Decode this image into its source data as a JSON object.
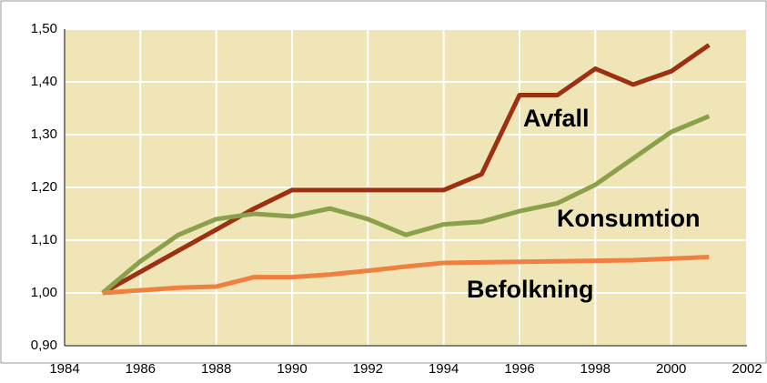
{
  "chart_data": {
    "type": "line",
    "x": [
      1985,
      1986,
      1987,
      1988,
      1989,
      1990,
      1991,
      1992,
      1993,
      1994,
      1995,
      1996,
      1997,
      1998,
      1999,
      2000,
      2001
    ],
    "series": [
      {
        "name": "Avfall",
        "color": "#9c3010",
        "values": [
          1.0,
          1.04,
          1.08,
          1.12,
          1.16,
          1.195,
          1.195,
          1.195,
          1.195,
          1.195,
          1.225,
          1.375,
          1.375,
          1.425,
          1.395,
          1.42,
          1.47
        ]
      },
      {
        "name": "Konsumtion",
        "color": "#8aa04a",
        "values": [
          1.0,
          1.06,
          1.11,
          1.14,
          1.15,
          1.145,
          1.16,
          1.14,
          1.11,
          1.13,
          1.135,
          1.155,
          1.17,
          1.205,
          1.255,
          1.305,
          1.335
        ]
      },
      {
        "name": "Befolkning",
        "color": "#f08040",
        "values": [
          1.0,
          1.005,
          1.01,
          1.012,
          1.03,
          1.03,
          1.035,
          1.042,
          1.05,
          1.057,
          1.058,
          1.059,
          1.06,
          1.061,
          1.062,
          1.065,
          1.068
        ]
      }
    ],
    "xlim": [
      1984,
      2002
    ],
    "xticks": [
      1984,
      1986,
      1988,
      1990,
      1992,
      1994,
      1996,
      1998,
      2000,
      2002
    ],
    "ylim": [
      0.9,
      1.5
    ],
    "yticks": [
      {
        "value": 0.9,
        "label": "0,90"
      },
      {
        "value": 1.0,
        "label": "1,00"
      },
      {
        "value": 1.1,
        "label": "1,10"
      },
      {
        "value": 1.2,
        "label": "1,20"
      },
      {
        "value": 1.3,
        "label": "1,30"
      },
      {
        "value": 1.4,
        "label": "1,40"
      },
      {
        "value": 1.5,
        "label": "1,50"
      }
    ],
    "grid": true
  }
}
